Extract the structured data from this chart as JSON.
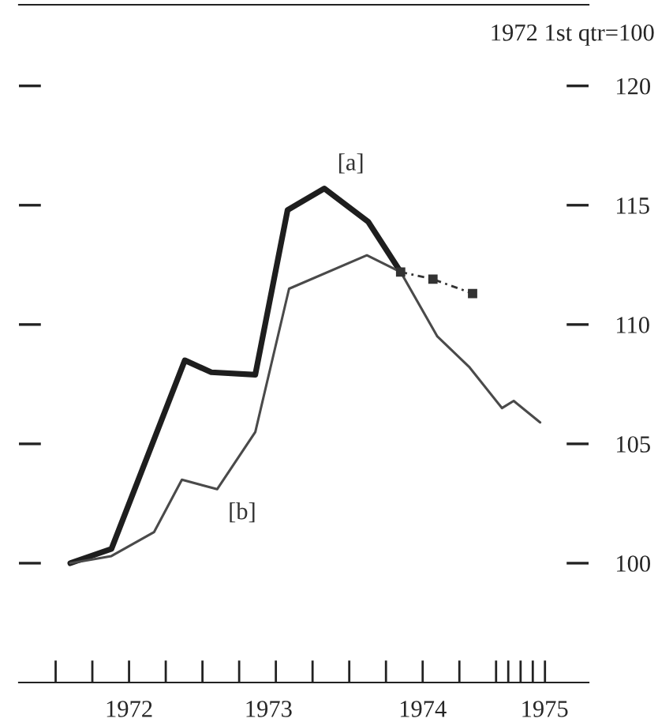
{
  "chart_data": {
    "type": "line",
    "annotations": [
      "1972 1st qtr=100",
      {
        "text": "[a]",
        "x": 1973.83,
        "y": 115.7
      },
      {
        "text": "[b]",
        "x": 1973.1,
        "y": 103.1
      }
    ],
    "series": [
      {
        "color": "#1e1e1e",
        "x": [
          1972.1,
          1972.38,
          1972.88,
          1973.06,
          1973.36,
          1973.58,
          1973.83,
          1974.13,
          1974.35
        ],
        "values": [
          100,
          100.6,
          108.5,
          108.0,
          107.9,
          114.8,
          115.7,
          114.3,
          112.2
        ]
      },
      {
        "color": "#4a4a4a",
        "x": [
          1972.1,
          1972.38,
          1972.67,
          1972.86,
          1973.1,
          1973.36,
          1973.59,
          1974.12,
          1974.35,
          1974.6,
          1974.82,
          1975.04,
          1975.12,
          1975.3
        ],
        "values": [
          100,
          100.3,
          101.3,
          103.5,
          103.1,
          105.5,
          111.5,
          112.9,
          112.2,
          109.5,
          108.2,
          106.5,
          106.8,
          105.9
        ]
      },
      {
        "color": "#333333",
        "x": [
          1974.35,
          1974.57,
          1974.84
        ],
        "values": [
          112.2,
          111.9,
          111.3
        ],
        "line_style": "dotted",
        "marker": "square"
      }
    ],
    "xlim": [
      1971.75,
      1975.63
    ],
    "xticks": [
      {
        "value": 1972,
        "label": null
      },
      {
        "value": 1972.25,
        "label": null
      },
      {
        "value": 1972.5,
        "label": null
      },
      {
        "value": 1972.75,
        "label": null
      },
      {
        "value": 1973,
        "label": null
      },
      {
        "value": 1973.25,
        "label": null
      },
      {
        "value": 1973.5,
        "label": null
      },
      {
        "value": 1973.75,
        "label": null
      },
      {
        "value": 1974,
        "label": null
      },
      {
        "value": 1974.25,
        "label": null
      },
      {
        "value": 1974.5,
        "label": null
      },
      {
        "value": 1974.75,
        "label": null
      },
      {
        "value": 1975,
        "label": null
      },
      {
        "value": 1975.083,
        "label": null
      },
      {
        "value": 1975.167,
        "label": null
      },
      {
        "value": 1975.25,
        "label": null
      },
      {
        "value": 1975.333,
        "label": null
      },
      {
        "value": 1972.5,
        "label": "1972"
      },
      {
        "value": 1973.45,
        "label": "1973"
      },
      {
        "value": 1974.5,
        "label": "1974"
      },
      {
        "value": 1975.33,
        "label": "1975"
      }
    ],
    "ylim": [
      95,
      123.4
    ],
    "yticks": [
      100,
      105,
      110,
      115,
      120
    ],
    "grid": false,
    "legend": false
  }
}
